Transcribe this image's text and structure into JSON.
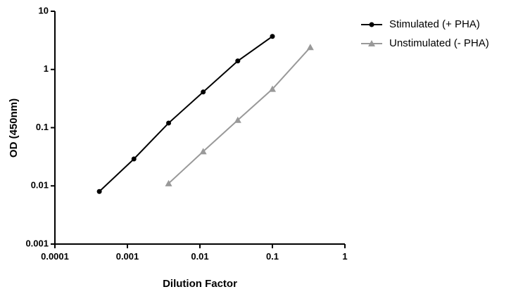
{
  "chart_data": {
    "type": "line",
    "x_label": "Dilution Factor",
    "y_label": "OD (450nm)",
    "xscale": "log",
    "yscale": "log",
    "xlim": [
      0.0001,
      1
    ],
    "xticks": [
      0.0001,
      0.001,
      0.01,
      0.1,
      1
    ],
    "ylim": [
      0.001,
      10
    ],
    "yticks": [
      0.001,
      0.01,
      0.1,
      1,
      10
    ],
    "grid": false,
    "legend": "top-right",
    "series": [
      {
        "name": "Stimulated (+ PHA)",
        "color": "#000000",
        "marker": "circle",
        "x": [
          0.00041,
          0.00123,
          0.0037,
          0.0111,
          0.0333,
          0.1
        ],
        "values": [
          0.008,
          0.029,
          0.12,
          0.41,
          1.4,
          3.7
        ]
      },
      {
        "name": "Unstimulated (- PHA)",
        "color": "#999999",
        "marker": "triangle",
        "x": [
          0.0037,
          0.0111,
          0.0333,
          0.1,
          0.333
        ],
        "values": [
          0.011,
          0.039,
          0.135,
          0.46,
          2.4
        ]
      }
    ]
  }
}
